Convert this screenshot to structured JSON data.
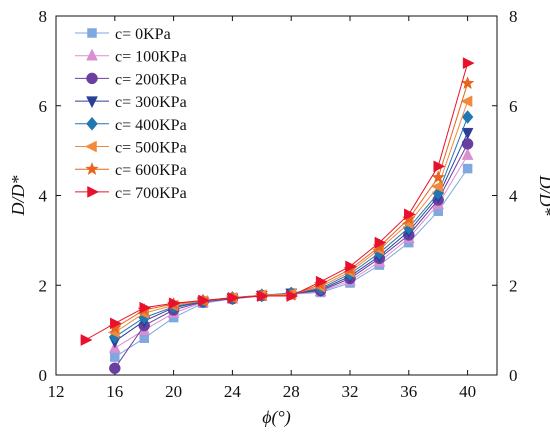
{
  "chart_data": {
    "type": "line",
    "title": "",
    "xlabel": "ϕ(°)",
    "ylabel": "D/D*",
    "ylabel_right": "D/D*",
    "xlim": [
      12,
      42
    ],
    "ylim": [
      0,
      8
    ],
    "xticks": [
      "12",
      "16",
      "20",
      "24",
      "28",
      "32",
      "36",
      "40"
    ],
    "yticks": [
      "0",
      "2",
      "4",
      "6",
      "8"
    ],
    "grid": false,
    "legend_position": "top-left",
    "series": [
      {
        "name": "c= 0KPa",
        "marker": "square",
        "color": "#7fa7e0",
        "x": [
          16,
          18,
          20,
          22,
          24,
          26,
          28,
          30,
          32,
          34,
          36,
          38,
          40
        ],
        "y": [
          0.4,
          0.82,
          1.28,
          1.6,
          1.7,
          1.76,
          1.8,
          1.84,
          2.05,
          2.45,
          2.95,
          3.65,
          4.6
        ]
      },
      {
        "name": "c= 100KPa",
        "marker": "triangle-up",
        "color": "#d98fd0",
        "x": [
          16,
          18,
          20,
          22,
          24,
          26,
          28,
          30,
          32,
          34,
          36,
          38,
          40
        ],
        "y": [
          0.6,
          1.0,
          1.38,
          1.62,
          1.7,
          1.76,
          1.8,
          1.86,
          2.1,
          2.52,
          3.05,
          3.8,
          4.9
        ]
      },
      {
        "name": "c= 200KPa",
        "marker": "circle",
        "color": "#6a3fa0",
        "x": [
          16,
          18,
          20,
          22,
          24,
          26,
          28,
          30,
          32,
          34,
          36,
          38,
          40
        ],
        "y": [
          0.15,
          1.1,
          1.45,
          1.63,
          1.7,
          1.77,
          1.81,
          1.88,
          2.15,
          2.6,
          3.12,
          3.9,
          5.15
        ]
      },
      {
        "name": "c= 300KPa",
        "marker": "triangle-down",
        "color": "#2b3f99",
        "x": [
          16,
          18,
          20,
          22,
          24,
          26,
          28,
          30,
          32,
          34,
          36,
          38,
          40
        ],
        "y": [
          0.75,
          1.2,
          1.5,
          1.64,
          1.71,
          1.77,
          1.82,
          1.9,
          2.2,
          2.65,
          3.2,
          3.98,
          5.4
        ]
      },
      {
        "name": "c= 400KPa",
        "marker": "diamond",
        "color": "#1f77b4",
        "x": [
          16,
          18,
          20,
          22,
          24,
          26,
          28,
          30,
          32,
          34,
          36,
          38,
          40
        ],
        "y": [
          0.85,
          1.28,
          1.52,
          1.65,
          1.72,
          1.78,
          1.82,
          1.93,
          2.25,
          2.72,
          3.28,
          4.05,
          5.75
        ]
      },
      {
        "name": "c= 500KPa",
        "marker": "triangle-left",
        "color": "#f28a3c",
        "x": [
          16,
          18,
          20,
          22,
          24,
          26,
          28,
          30,
          32,
          34,
          36,
          38,
          40
        ],
        "y": [
          0.95,
          1.38,
          1.55,
          1.65,
          1.72,
          1.78,
          1.8,
          1.97,
          2.3,
          2.8,
          3.38,
          4.2,
          6.1
        ]
      },
      {
        "name": "c= 600KPa",
        "marker": "star",
        "color": "#e8641e",
        "x": [
          16,
          18,
          20,
          22,
          24,
          26,
          28,
          30,
          32,
          34,
          36,
          38,
          40
        ],
        "y": [
          1.05,
          1.45,
          1.58,
          1.66,
          1.72,
          1.77,
          1.78,
          2.02,
          2.35,
          2.86,
          3.48,
          4.4,
          6.5
        ]
      },
      {
        "name": "c= 700KPa",
        "marker": "triangle-right",
        "color": "#e8112d",
        "x": [
          14,
          16,
          18,
          20,
          22,
          24,
          26,
          28,
          30,
          32,
          34,
          36,
          38,
          40
        ],
        "y": [
          0.78,
          1.15,
          1.5,
          1.6,
          1.66,
          1.72,
          1.76,
          1.76,
          2.08,
          2.42,
          2.95,
          3.58,
          4.65,
          6.95
        ]
      }
    ]
  }
}
